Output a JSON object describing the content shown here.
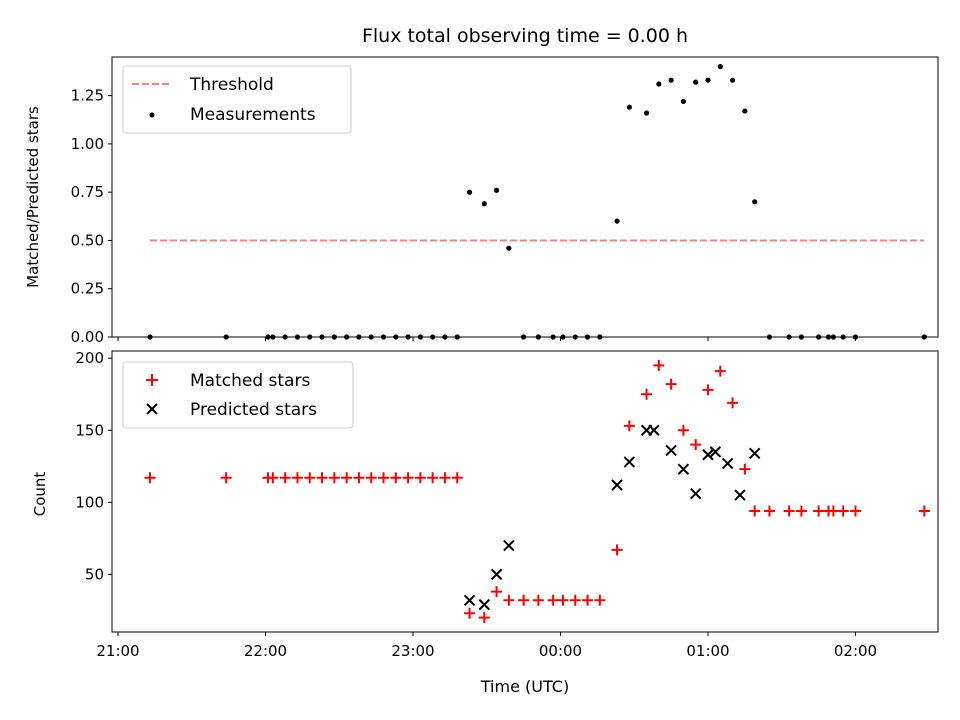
{
  "chart_data": [
    {
      "type": "scatter",
      "title": "Flux total observing time = 0.00 h",
      "ylabel": "Matched/Predicted stars",
      "xlabel": "",
      "ylim": [
        0,
        1.45
      ],
      "yticks": [
        "0.00",
        "0.25",
        "0.50",
        "0.75",
        "1.00",
        "1.25"
      ],
      "ytick_values": [
        0,
        0.25,
        0.5,
        0.75,
        1.0,
        1.25
      ],
      "legend_placement": "upper-left",
      "series": [
        {
          "name": "Threshold",
          "style": "dashed-line",
          "color": "#ff7f7f",
          "x": [
            "21:13",
            "22:40",
            "00:00",
            "01:00",
            "02:28"
          ],
          "values": [
            0.5,
            0.5,
            0.5,
            0.5,
            0.5
          ]
        },
        {
          "name": "Measurements",
          "style": "dot",
          "color": "#000000",
          "x": [
            "21:13",
            "21:44",
            "22:01",
            "22:03",
            "22:08",
            "22:13",
            "22:18",
            "22:23",
            "22:28",
            "22:33",
            "22:38",
            "22:43",
            "22:48",
            "22:53",
            "22:58",
            "23:03",
            "23:08",
            "23:13",
            "23:18",
            "23:23",
            "23:29",
            "23:34",
            "23:39",
            "23:45",
            "23:51",
            "23:57",
            "00:01",
            "00:06",
            "00:11",
            "00:16",
            "00:23",
            "00:28",
            "00:35",
            "00:40",
            "00:45",
            "00:50",
            "00:55",
            "01:00",
            "01:05",
            "01:10",
            "01:15",
            "01:19",
            "01:25",
            "01:33",
            "01:38",
            "01:45",
            "01:49",
            "01:51",
            "01:55",
            "02:00",
            "02:28"
          ],
          "values": [
            0,
            0,
            0,
            0,
            0,
            0,
            0,
            0,
            0,
            0,
            0,
            0,
            0,
            0,
            0,
            0,
            0,
            0,
            0,
            0.75,
            0.69,
            0.76,
            0.46,
            0,
            0,
            0,
            0,
            0,
            0,
            0,
            0.6,
            1.19,
            1.16,
            1.31,
            1.33,
            1.22,
            1.32,
            1.33,
            1.4,
            1.33,
            1.17,
            0.7,
            0,
            0,
            0,
            0,
            0,
            0,
            0,
            0,
            0
          ]
        }
      ]
    },
    {
      "type": "scatter",
      "title": "",
      "ylabel": "Count",
      "xlabel": "Time (UTC)",
      "ylim": [
        10,
        205
      ],
      "yticks": [
        "50",
        "100",
        "150",
        "200"
      ],
      "ytick_values": [
        50,
        100,
        150,
        200
      ],
      "xticks": [
        "21:00",
        "22:00",
        "23:00",
        "00:00",
        "01:00",
        "02:00"
      ],
      "legend_placement": "upper-left",
      "series": [
        {
          "name": "Matched stars",
          "style": "plus",
          "color": "#ff0000",
          "x": [
            "21:13",
            "21:44",
            "22:01",
            "22:03",
            "22:08",
            "22:13",
            "22:18",
            "22:23",
            "22:28",
            "22:33",
            "22:38",
            "22:43",
            "22:48",
            "22:53",
            "22:58",
            "23:03",
            "23:08",
            "23:13",
            "23:18",
            "23:23",
            "23:29",
            "23:34",
            "23:39",
            "23:45",
            "23:51",
            "23:57",
            "00:01",
            "00:06",
            "00:11",
            "00:16",
            "00:23",
            "00:28",
            "00:35",
            "00:40",
            "00:45",
            "00:50",
            "00:55",
            "01:00",
            "01:05",
            "01:10",
            "01:15",
            "01:19",
            "01:25",
            "01:33",
            "01:38",
            "01:45",
            "01:49",
            "01:51",
            "01:55",
            "02:00",
            "02:28"
          ],
          "values": [
            117,
            117,
            117,
            117,
            117,
            117,
            117,
            117,
            117,
            117,
            117,
            117,
            117,
            117,
            117,
            117,
            117,
            117,
            117,
            23,
            20,
            38,
            32,
            32,
            32,
            32,
            32,
            32,
            32,
            32,
            67,
            153,
            175,
            195,
            182,
            150,
            140,
            178,
            191,
            169,
            123,
            94,
            94,
            94,
            94,
            94,
            94,
            94,
            94,
            94,
            94
          ]
        },
        {
          "name": "Predicted stars",
          "style": "x",
          "color": "#000000",
          "x": [
            "23:23",
            "23:29",
            "23:34",
            "23:39",
            "00:23",
            "00:28",
            "00:35",
            "00:38",
            "00:45",
            "00:50",
            "00:55",
            "01:00",
            "01:03",
            "01:08",
            "01:13",
            "01:19"
          ],
          "values": [
            32,
            29,
            50,
            70,
            112,
            128,
            150,
            150,
            136,
            123,
            106,
            133,
            135,
            127,
            105,
            134
          ]
        }
      ]
    }
  ]
}
